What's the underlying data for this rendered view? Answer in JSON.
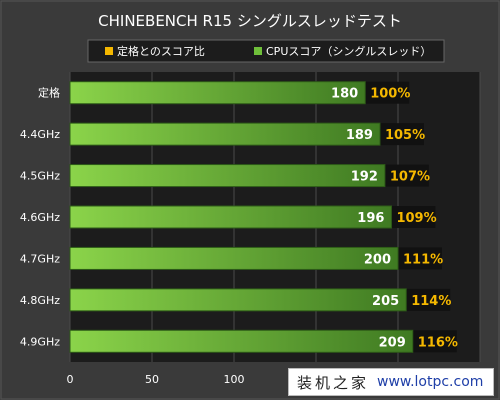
{
  "chart_data": {
    "type": "bar",
    "orientation": "horizontal",
    "title": "CHINEBENCH R15 シングルスレッドテスト",
    "legend": [
      {
        "label": "定格とのスコア比",
        "color": "#f5b800"
      },
      {
        "label": "CPUスコア（シングルスレッド）",
        "color": "#6fbf3a"
      }
    ],
    "legend_position": "top",
    "categories": [
      "定格",
      "4.4GHz",
      "4.5GHz",
      "4.6GHz",
      "4.7GHz",
      "4.8GHz",
      "4.9GHz"
    ],
    "series": [
      {
        "name": "CPUスコア（シングルスレッド）",
        "values": [
          180,
          189,
          192,
          196,
          200,
          205,
          209
        ]
      }
    ],
    "ratio_labels": [
      "100%",
      "105%",
      "107%",
      "109%",
      "111%",
      "114%",
      "116%"
    ],
    "x_ticks": [
      0,
      50,
      100
    ],
    "xlim": [
      0,
      250
    ],
    "grid": true,
    "colors": {
      "bar_light": "#8bd44a",
      "bar_dark": "#3f7a22",
      "ratio_text": "#f5b800",
      "background": "#3a3a3a",
      "plot_bg": "#1c1c1c"
    }
  },
  "watermark": {
    "chinese": "装机之家",
    "url": "www.lotpc.com"
  }
}
